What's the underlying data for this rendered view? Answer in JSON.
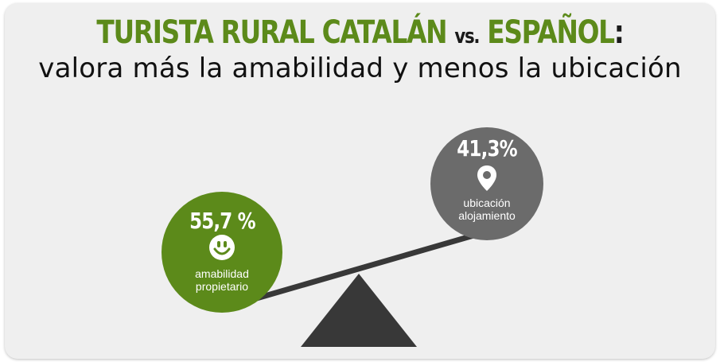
{
  "title": {
    "part1": "TURISTA RURAL CATALÁN",
    "part2": "vs.",
    "part3": "ESPAÑOL",
    "part4": ":",
    "subtitle": "valora más la amabilidad y menos la ubicación"
  },
  "left_item": {
    "value": "55,7 %",
    "label_line1": "amabilidad",
    "label_line2": "propietario",
    "icon": "smiley-face-icon",
    "color": "#5c8a1a"
  },
  "right_item": {
    "value": "41,3%",
    "label_line1": "ubicación",
    "label_line2": "alojamiento",
    "icon": "location-pin-icon",
    "color": "#6b6b6b"
  },
  "colors": {
    "accent_green": "#5c8a1a",
    "dark": "#333333",
    "background": "#efefef"
  }
}
